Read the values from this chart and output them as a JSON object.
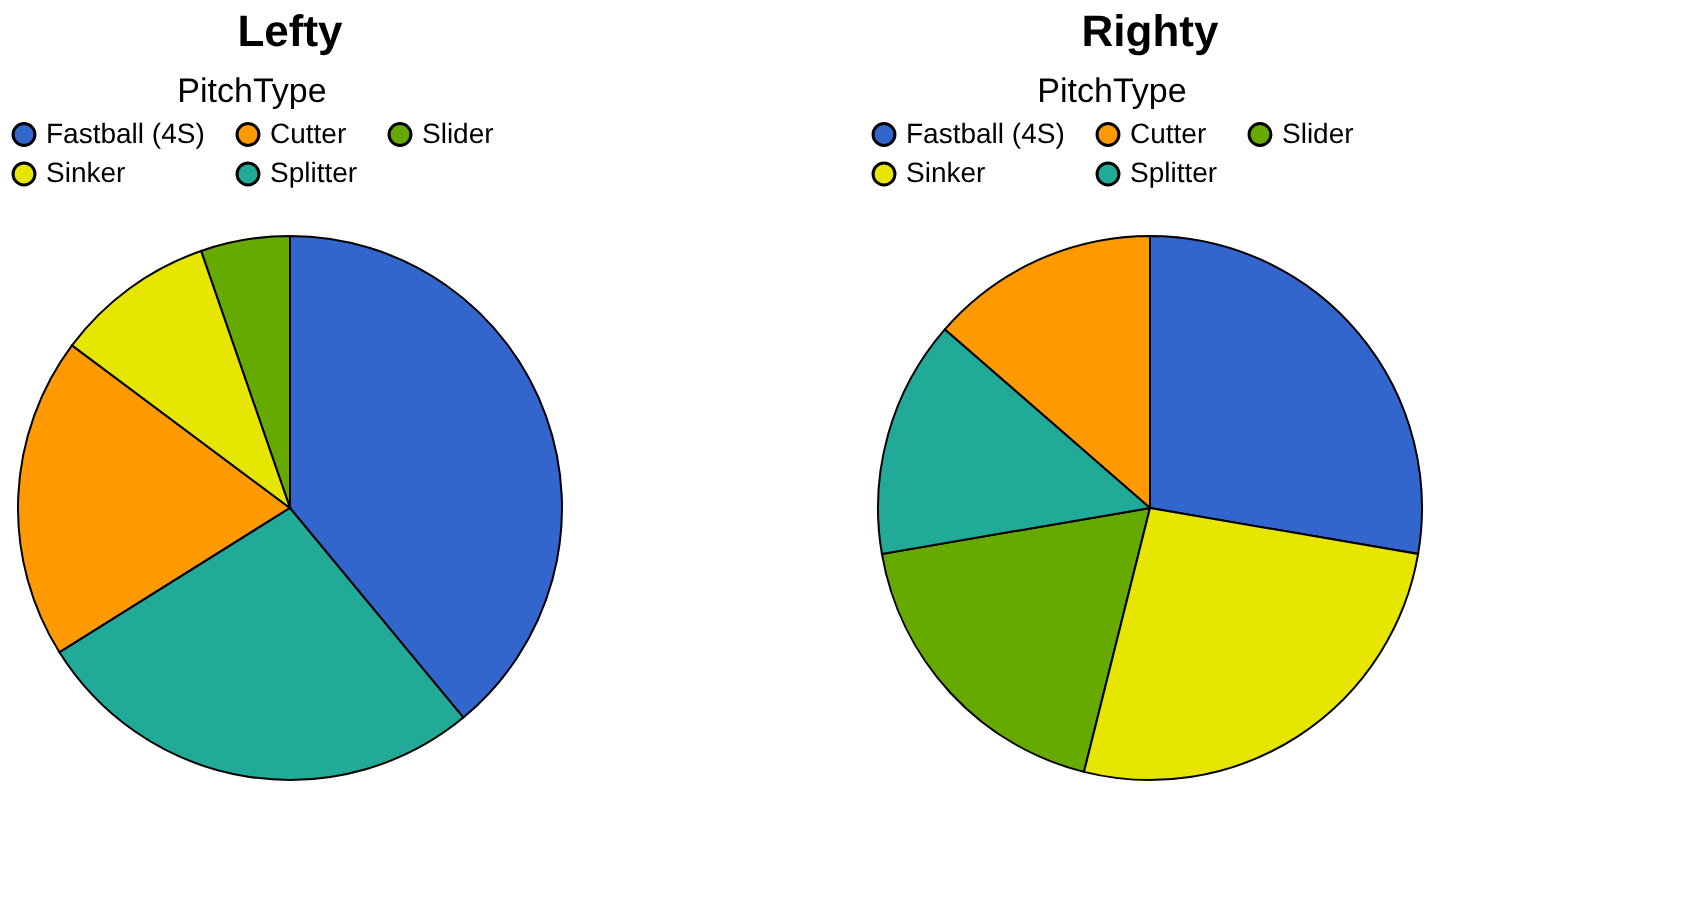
{
  "chart_data": [
    {
      "type": "pie",
      "title": "Lefty",
      "legend_title": "PitchType",
      "legend": "top",
      "categories": [
        "Fastball (4S)",
        "Cutter",
        "Slider",
        "Sinker",
        "Splitter"
      ],
      "values": [
        39,
        19.1,
        5.3,
        9.5,
        27.1
      ],
      "colors": [
        "#3366cc",
        "#ff9900",
        "#66aa00",
        "#e6e600",
        "#22aa99"
      ]
    },
    {
      "type": "pie",
      "title": "Righty",
      "legend_title": "PitchType",
      "legend": "top",
      "categories": [
        "Fastball (4S)",
        "Cutter",
        "Slider",
        "Sinker",
        "Splitter"
      ],
      "values": [
        27.7,
        13.6,
        18.4,
        26.2,
        14.1
      ],
      "colors": [
        "#3366cc",
        "#ff9900",
        "#66aa00",
        "#e6e600",
        "#22aa99"
      ]
    }
  ]
}
